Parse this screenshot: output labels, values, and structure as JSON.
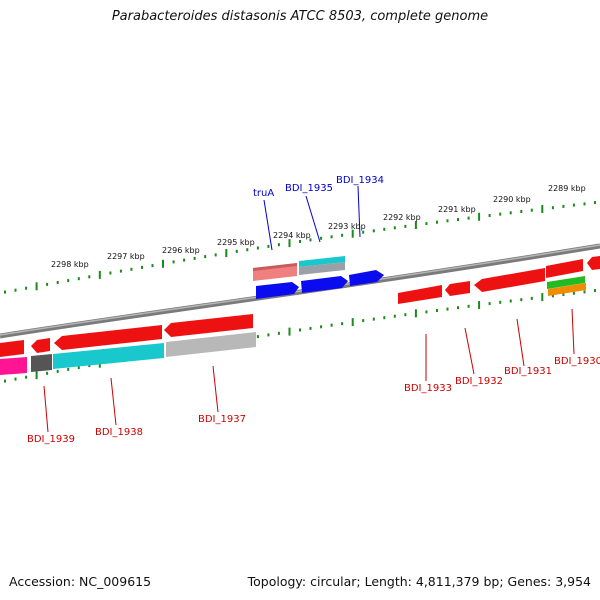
{
  "title": "Parabacteroides distasonis ATCC 8503, complete genome",
  "footer": {
    "accession": "Accession: NC_009615",
    "topology": "Topology: circular; Length: 4,811,379 bp; Genes: 3,954"
  },
  "scale_labels": [
    "2298 kbp",
    "2297 kbp",
    "2296 kbp",
    "2295 kbp",
    "2294 kbp",
    "2293 kbp",
    "2292 kbp",
    "2291 kbp",
    "2290 kbp",
    "2289 kbp"
  ],
  "gene_labels_top": [
    "truA",
    "BDI_1935",
    "BDI_1934"
  ],
  "gene_labels_bottom": [
    "BDI_1939",
    "BDI_1938",
    "BDI_1937",
    "BDI_1933",
    "BDI_1932",
    "BDI_1931",
    "BDI_1930"
  ],
  "colors": {
    "forward_label": "#0000cc",
    "reverse_label": "#cc0000",
    "tick": "#1a8a1a",
    "backbone": "#808080",
    "gene_red": "#ee1111",
    "gene_blue": "#0b0bf0",
    "gene_cyan": "#18c8cc",
    "gene_grey": "#b8b8b8",
    "gene_salmon": "#f08080",
    "gene_magenta": "#ff1493",
    "gene_green": "#22bb22",
    "gene_orange": "#f08c00"
  }
}
